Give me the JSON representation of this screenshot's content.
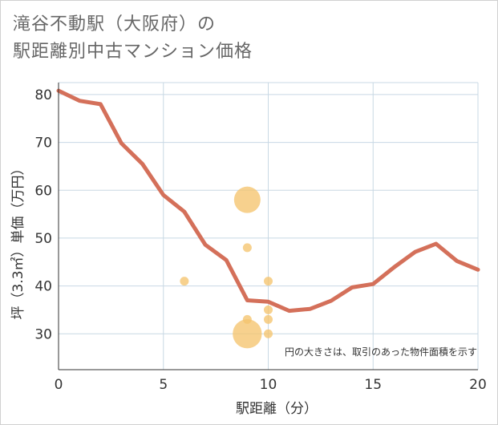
{
  "title_lines": [
    "滝谷不動駅（大阪府）の",
    "駅距離別中古マンション価格"
  ],
  "chart_data": {
    "type": "line+scatter",
    "xlabel": "駅距離（分）",
    "ylabel": "坪（3.3㎡）単価（万円）",
    "xlim": [
      0,
      20
    ],
    "ylim": [
      22.5,
      82.5
    ],
    "xticks": [
      0,
      5,
      10,
      15,
      20
    ],
    "yticks": [
      30,
      40,
      50,
      60,
      70,
      80
    ],
    "grid": true,
    "note": "円の大きさは、取引のあった物件面積を示す",
    "colors": {
      "line": "#d4705a",
      "bubble": "#f5c46e",
      "grid": "#c8d8e4",
      "axis": "#333333"
    },
    "line": {
      "x": [
        0,
        1,
        2,
        3,
        4,
        5,
        6,
        7,
        8,
        9,
        10,
        11,
        12,
        13,
        14,
        15,
        16,
        17,
        18,
        19,
        20
      ],
      "y": [
        80.8,
        78.7,
        78,
        69.8,
        65.5,
        59,
        55.5,
        48.6,
        45.4,
        37,
        36.7,
        34.8,
        35.2,
        36.9,
        39.7,
        40.4,
        43.9,
        47.1,
        48.8,
        45.2,
        43.4
      ]
    },
    "bubbles": [
      {
        "x": 6,
        "y": 41,
        "size": 1
      },
      {
        "x": 9,
        "y": 58,
        "size": 3
      },
      {
        "x": 9,
        "y": 48,
        "size": 1
      },
      {
        "x": 9,
        "y": 33,
        "size": 1
      },
      {
        "x": 9,
        "y": 30,
        "size": 3.3
      },
      {
        "x": 10,
        "y": 41,
        "size": 1
      },
      {
        "x": 10,
        "y": 35,
        "size": 1
      },
      {
        "x": 10,
        "y": 33,
        "size": 1
      },
      {
        "x": 10,
        "y": 30,
        "size": 1
      }
    ]
  }
}
